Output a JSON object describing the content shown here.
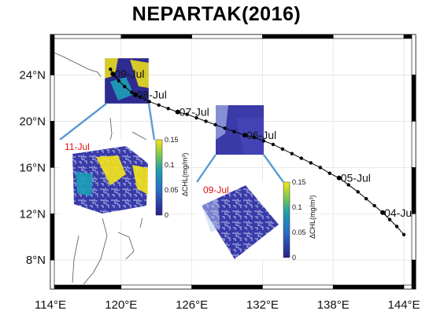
{
  "title": "NEPARTAK(2016)",
  "map": {
    "lon_range": [
      114,
      145
    ],
    "lat_range": [
      5.5,
      27.5
    ],
    "lon_ticks": [
      {
        "value": 114,
        "label": "114°E"
      },
      {
        "value": 120,
        "label": "120°E"
      },
      {
        "value": 126,
        "label": "126°E"
      },
      {
        "value": 132,
        "label": "132°E"
      },
      {
        "value": 138,
        "label": "138°E"
      },
      {
        "value": 144,
        "label": "144°E"
      }
    ],
    "lat_ticks": [
      {
        "value": 24,
        "label": "24°N"
      },
      {
        "value": 20,
        "label": "20°N"
      },
      {
        "value": 16,
        "label": "16°N"
      },
      {
        "value": 12,
        "label": "12°N"
      },
      {
        "value": 8,
        "label": "8°N"
      }
    ],
    "grid": true
  },
  "track": {
    "color": "#000000",
    "points": [
      [
        144.0,
        10.2
      ],
      [
        143.4,
        10.9
      ],
      [
        142.8,
        11.5
      ],
      [
        142.2,
        12.1
      ],
      [
        141.5,
        12.7
      ],
      [
        140.8,
        13.3
      ],
      [
        140.1,
        13.9
      ],
      [
        139.3,
        14.5
      ],
      [
        138.5,
        15.1
      ],
      [
        137.7,
        15.5
      ],
      [
        136.9,
        16.0
      ],
      [
        136.1,
        16.4
      ],
      [
        135.3,
        16.8
      ],
      [
        134.5,
        17.2
      ],
      [
        133.7,
        17.6
      ],
      [
        132.9,
        18.0
      ],
      [
        132.1,
        18.3
      ],
      [
        131.3,
        18.6
      ],
      [
        130.5,
        18.8
      ],
      [
        129.6,
        19.1
      ],
      [
        128.8,
        19.4
      ],
      [
        128.0,
        19.7
      ],
      [
        127.2,
        20.0
      ],
      [
        126.4,
        20.3
      ],
      [
        125.6,
        20.6
      ],
      [
        124.8,
        20.8
      ],
      [
        124.0,
        21.1
      ],
      [
        123.2,
        21.4
      ],
      [
        122.4,
        21.7
      ],
      [
        121.6,
        22.1
      ],
      [
        120.9,
        22.5
      ],
      [
        120.3,
        23.0
      ],
      [
        119.8,
        23.5
      ],
      [
        119.4,
        24.0
      ],
      [
        119.1,
        24.5
      ]
    ],
    "labels": [
      {
        "text": "04-Jul",
        "lon": 142.2,
        "lat": 12.1
      },
      {
        "text": "05-Jul",
        "lon": 138.5,
        "lat": 15.1
      },
      {
        "text": "06-Jul",
        "lon": 130.5,
        "lat": 18.8
      },
      {
        "text": "07-Jul",
        "lon": 124.8,
        "lat": 20.8
      },
      {
        "text": "08-Jul",
        "lon": 121.2,
        "lat": 22.3
      },
      {
        "text": "09-Jul",
        "lon": 119.3,
        "lat": 24.1
      }
    ]
  },
  "insets": [
    {
      "date_label": "11-Jul",
      "colorbar": {
        "ticks": [
          "0.15",
          "0.1",
          "0.05",
          "0"
        ],
        "label": "ΔCHL(mg/m³)"
      }
    },
    {
      "date_label": "09-Jul",
      "colorbar": {
        "ticks": [
          "0.15",
          "0.1",
          "0.05",
          "0"
        ],
        "label": "ΔCHL(mg/m³)"
      }
    }
  ],
  "colors": {
    "chl_low": "#2b1f8a",
    "chl_mid": "#1e9fb8",
    "chl_high": "#f5e61a",
    "leader_line": "#5b9bd5",
    "inset_date": "#e01010"
  }
}
